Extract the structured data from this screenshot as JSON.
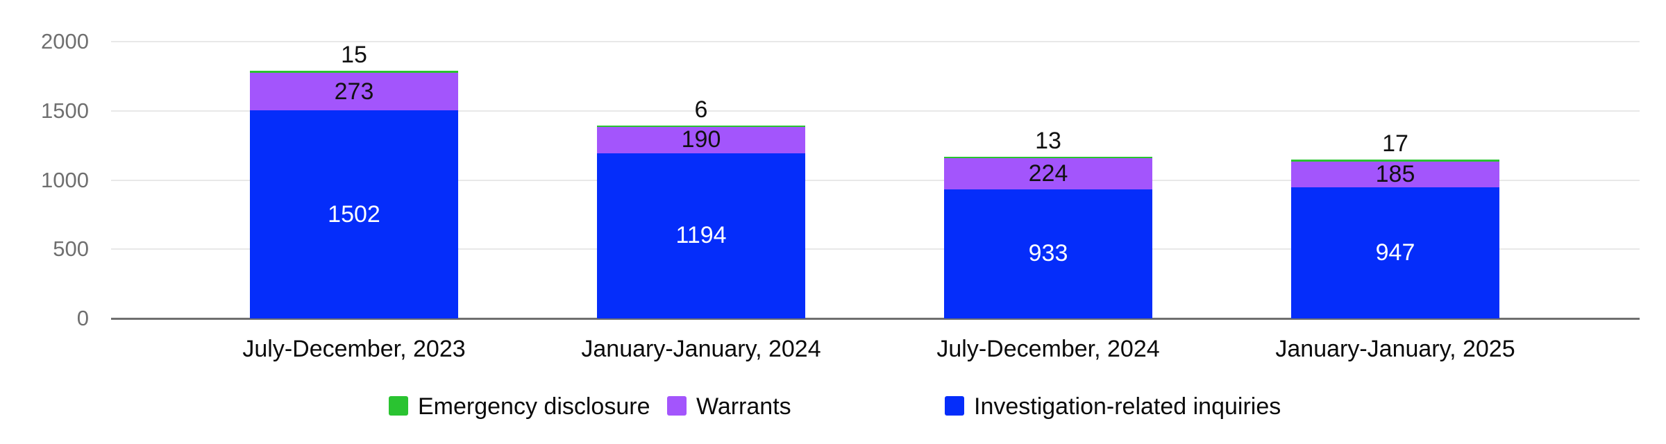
{
  "chart_data": {
    "type": "bar",
    "stacked": true,
    "title": "",
    "categories": [
      "July-December, 2023",
      "January-January, 2024",
      "July-December, 2024",
      "January-January, 2025"
    ],
    "series": [
      {
        "name": "Investigation-related inquiries",
        "color": "#052dfa",
        "text_color": "#ffffff",
        "label_placement": "inside",
        "values": [
          1502,
          1194,
          933,
          947
        ]
      },
      {
        "name": "Warrants",
        "color": "#a355fc",
        "text_color": "#111111",
        "label_placement": "inside",
        "values": [
          273,
          190,
          224,
          185
        ]
      },
      {
        "name": "Emergency disclosure",
        "color": "#2ac331",
        "text_color": "#111111",
        "label_placement": "above",
        "values": [
          15,
          6,
          13,
          17
        ]
      }
    ],
    "totals": [
      1790,
      1390,
      1170,
      1149
    ],
    "y_axis": {
      "min": 0,
      "max": 2000,
      "ticks": [
        "0",
        "500",
        "1000",
        "1500",
        "2000"
      ],
      "grid": true
    },
    "x_axis": {
      "labels_visible": true
    },
    "legend": {
      "position": "bottom",
      "items": [
        {
          "label": "Emergency disclosure",
          "color": "#2ac331"
        },
        {
          "label": "Warrants",
          "color": "#a355fc"
        },
        {
          "label": "Investigation-related inquiries",
          "color": "#052dfa"
        }
      ]
    },
    "colors": {
      "grid": "#e8e8e8",
      "axis_line": "#6f6f6f",
      "tick_text": "#6f6f6f",
      "category_text": "#0b0b0b",
      "background": "#ffffff"
    }
  }
}
